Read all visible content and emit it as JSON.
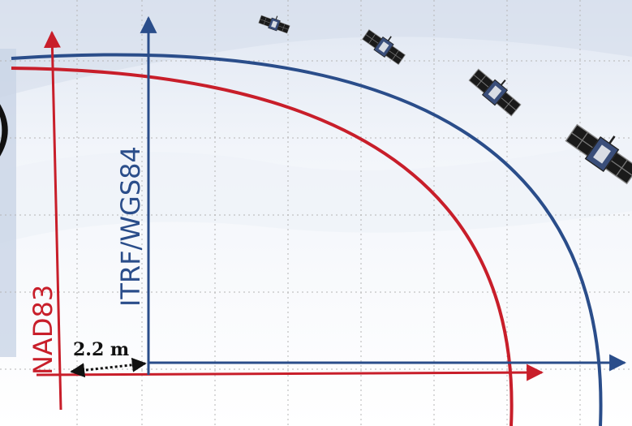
{
  "frames": {
    "red": {
      "label": "NAD83",
      "color": "#c81e2a"
    },
    "blue": {
      "label": "ITRF/WGS84",
      "color": "#2a4d8a"
    }
  },
  "offset_label": "2.2 m",
  "partial_text": ")",
  "icons": [
    "satellite-icon",
    "satellite-icon",
    "satellite-icon",
    "satellite-icon"
  ],
  "background": {
    "base": "#ffffff",
    "tint": "#e6ecf5",
    "grid": "#b5b5b5"
  }
}
